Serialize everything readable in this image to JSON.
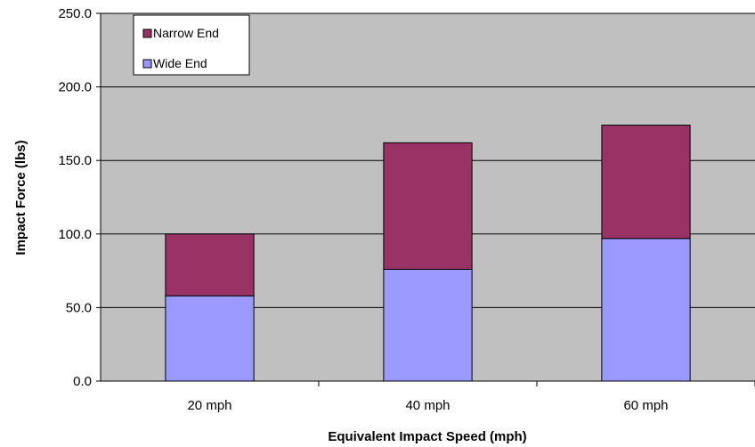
{
  "chart_data": {
    "type": "bar",
    "stacked": true,
    "title": "",
    "xlabel": "Equivalent Impact Speed (mph)",
    "ylabel": "Impact Force (lbs)",
    "categories": [
      "20 mph",
      "40 mph",
      "60 mph"
    ],
    "ylim": [
      0,
      250
    ],
    "yticks": [
      "0.0",
      "50.0",
      "100.0",
      "150.0",
      "200.0",
      "250.0"
    ],
    "grid": true,
    "legend_position": "top-left",
    "series": [
      {
        "name": "Wide End",
        "values": [
          58,
          76,
          97
        ],
        "color": "#9999ff"
      },
      {
        "name": "Narrow End",
        "values": [
          42,
          86,
          77
        ],
        "color": "#993366"
      }
    ],
    "plot_background": "#c0c0c0"
  }
}
